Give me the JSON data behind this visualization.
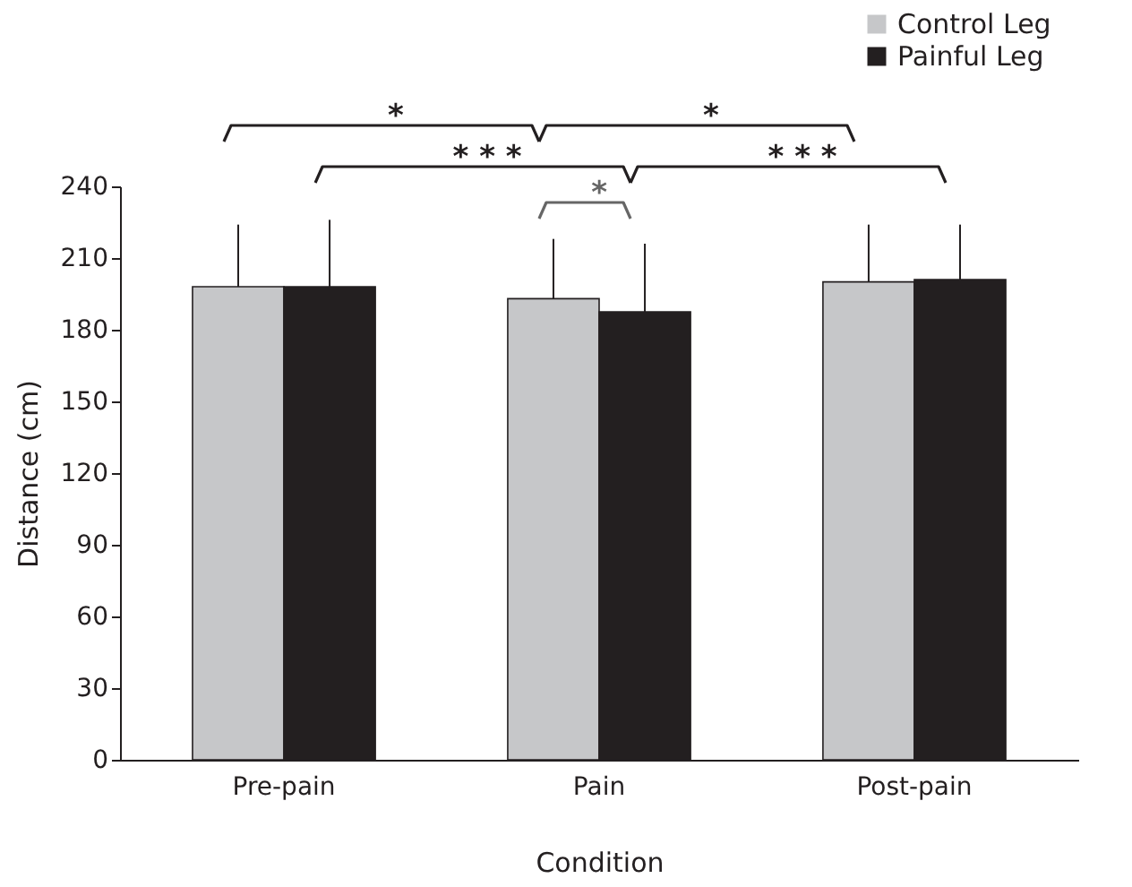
{
  "chart_data": {
    "type": "bar",
    "xlabel": "Condition",
    "ylabel": "Distance (cm)",
    "categories": [
      "Pre-pain",
      "Pain",
      "Post-pain"
    ],
    "series": [
      {
        "name": "Control Leg",
        "color": "#c6c7c9",
        "values": [
          198,
          193,
          200
        ],
        "errors": [
          [
            198,
            224
          ],
          [
            193,
            218
          ],
          [
            200,
            224
          ]
        ]
      },
      {
        "name": "Painful Leg",
        "color": "#231f20",
        "values": [
          198,
          187.5,
          201
        ],
        "errors": [
          [
            198,
            226
          ],
          [
            187.5,
            216
          ],
          [
            201,
            224
          ]
        ]
      }
    ],
    "ylim": [
      0,
      240
    ],
    "yticks": [
      0,
      30,
      60,
      90,
      120,
      150,
      180,
      210,
      240
    ],
    "legend": "top right",
    "annotations": [
      "*",
      "*",
      "* * *",
      "* * *",
      "*"
    ]
  }
}
